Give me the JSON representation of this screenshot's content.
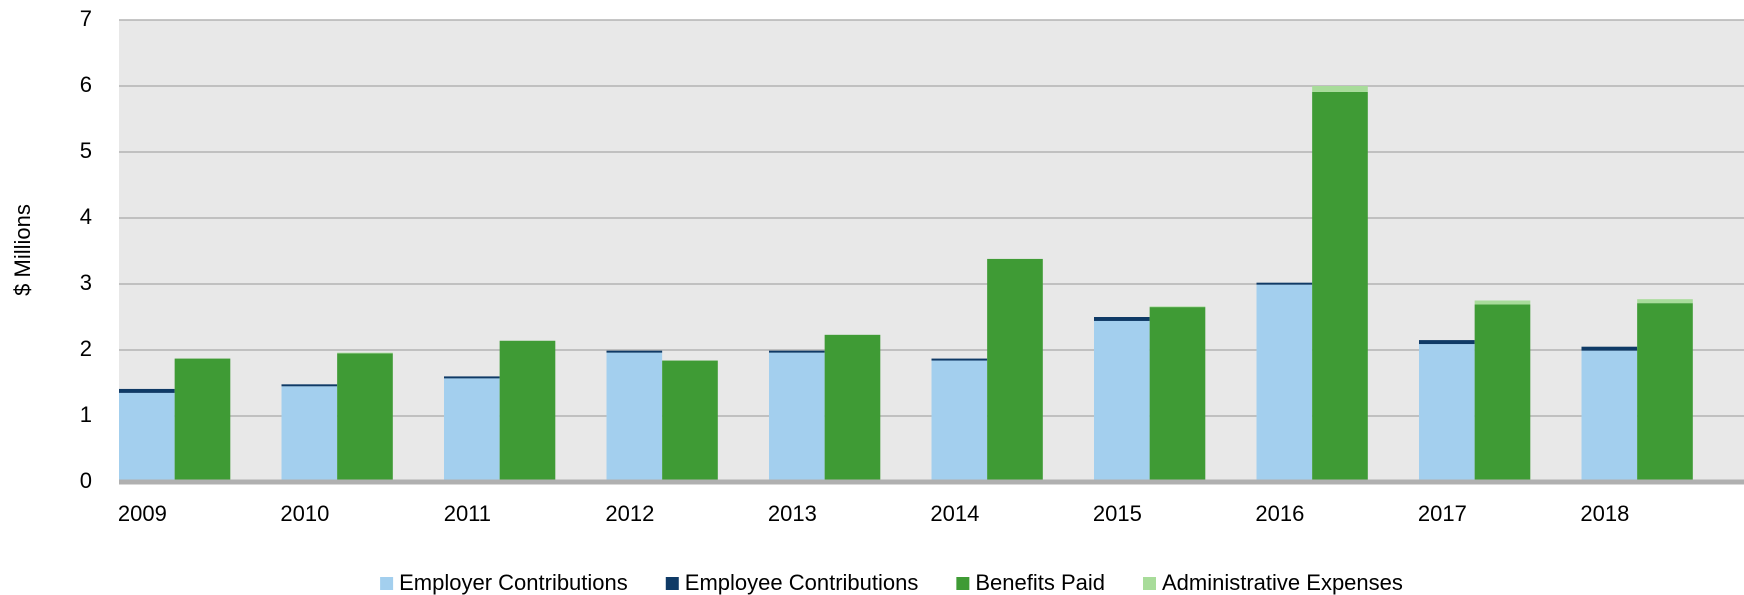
{
  "chart_data": {
    "type": "bar",
    "stacked": true,
    "y_label": "$ Millions",
    "categories": [
      "2009",
      "2010",
      "2011",
      "2012",
      "2013",
      "2014",
      "2015",
      "2016",
      "2017",
      "2018"
    ],
    "series": [
      {
        "name": "Employer Contributions",
        "color": "#a3cfee",
        "stack": 0,
        "values": [
          1.35,
          1.45,
          1.57,
          1.96,
          1.96,
          1.84,
          2.44,
          2.99,
          2.09,
          1.99
        ]
      },
      {
        "name": "Employee Contributions",
        "color": "#0f3a66",
        "stack": 0,
        "values": [
          0.06,
          0.03,
          0.03,
          0.03,
          0.03,
          0.03,
          0.06,
          0.03,
          0.06,
          0.06
        ]
      },
      {
        "name": "Benefits Paid",
        "color": "#3f9b35",
        "stack": 1,
        "values": [
          1.87,
          1.95,
          2.14,
          1.84,
          2.23,
          3.38,
          2.65,
          5.91,
          2.69,
          2.71
        ]
      },
      {
        "name": "Administrative Expenses",
        "color": "#a8dc9a",
        "stack": 1,
        "values": [
          0,
          0.01,
          0,
          0,
          0,
          0,
          0.01,
          0.09,
          0.06,
          0.06
        ]
      }
    ],
    "ylim": [
      0,
      7
    ],
    "yticks": [
      0,
      1,
      2,
      3,
      4,
      5,
      6,
      7
    ],
    "grid": true,
    "legend": "bottom"
  }
}
